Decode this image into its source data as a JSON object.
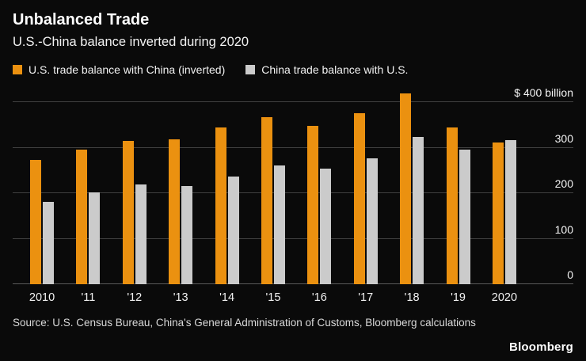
{
  "header": {
    "title": "Unbalanced Trade",
    "subtitle": "U.S.-China balance inverted during 2020"
  },
  "chart_data": {
    "type": "bar",
    "title": "Unbalanced Trade",
    "subtitle": "U.S.-China balance inverted during 2020",
    "categories": [
      "2010",
      "'11",
      "'12",
      "'13",
      "'14",
      "'15",
      "'16",
      "'17",
      "'18",
      "'19",
      "2020"
    ],
    "series": [
      {
        "name": "U.S. trade balance with China (inverted)",
        "color": "#EB9110",
        "values": [
          273,
          295,
          315,
          319,
          345,
          367,
          347,
          375,
          419,
          345,
          311
        ]
      },
      {
        "name": "China trade balance with U.S.",
        "color": "#CBCBCB",
        "values": [
          181,
          202,
          219,
          216,
          237,
          261,
          254,
          276,
          323,
          296,
          317
        ]
      }
    ],
    "ylim": [
      0,
      400
    ],
    "yticks": [
      0,
      100,
      200,
      300,
      400
    ],
    "ytick_labels": [
      "0",
      "100",
      "200",
      "300",
      "$ 400 billion"
    ],
    "grid": true,
    "legend_position": "top"
  },
  "footer": {
    "source": "Source: U.S. Census Bureau, China's General Administration of Customs, Bloomberg calculations",
    "logo": "Bloomberg"
  }
}
